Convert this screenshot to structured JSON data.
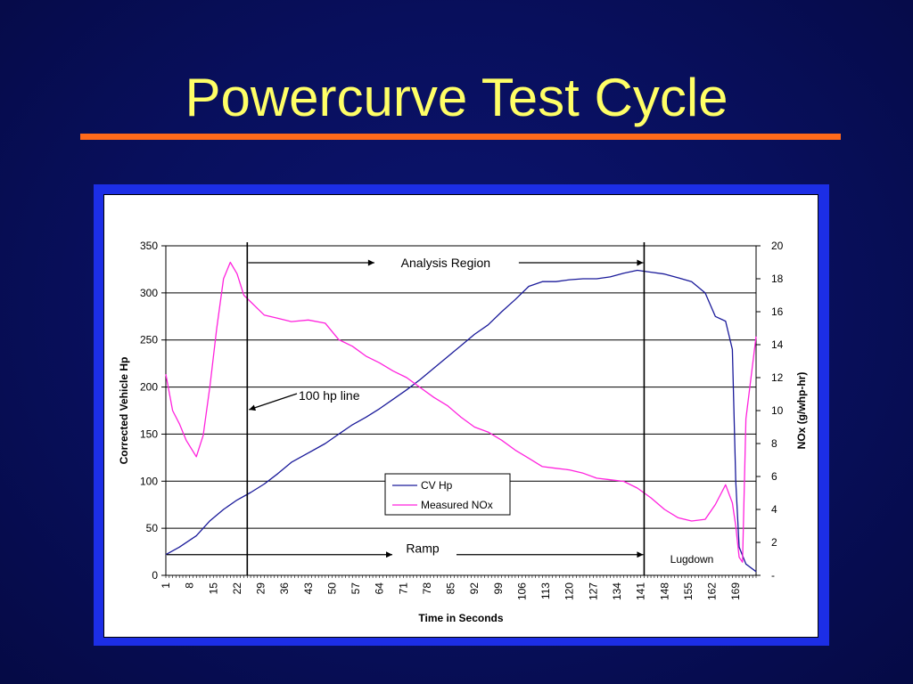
{
  "slide": {
    "title": "Powercurve Test Cycle",
    "title_color": "#ffff66",
    "rule_color": "#ff6a1a",
    "frame_color": "#1c2ee6"
  },
  "chart_data": {
    "type": "line",
    "xlabel": "Time in Seconds",
    "ylabel": "Corrected Vehicle Hp",
    "y2label": "NOx (g/whp-hr)",
    "xlim": [
      1,
      175
    ],
    "ylim": [
      0,
      350
    ],
    "y2lim": [
      0,
      20
    ],
    "x_tick_labels": [
      "1",
      "8",
      "15",
      "22",
      "29",
      "36",
      "43",
      "50",
      "57",
      "64",
      "71",
      "78",
      "85",
      "92",
      "99",
      "106",
      "113",
      "120",
      "127",
      "134",
      "141",
      "148",
      "155",
      "162",
      "169"
    ],
    "y_ticks": [
      0,
      50,
      100,
      150,
      200,
      250,
      300,
      350
    ],
    "y2_ticks": [
      0,
      2,
      4,
      6,
      8,
      10,
      12,
      14,
      16,
      18,
      20
    ],
    "y2_zero_label": "-",
    "grid": "horizontal",
    "legend_position": "lower-center",
    "series": [
      {
        "name": "CV Hp",
        "axis": "left",
        "color": "#1a1a9a",
        "x": [
          1,
          5,
          10,
          14,
          18,
          22,
          26,
          30,
          34,
          38,
          43,
          48,
          52,
          56,
          60,
          64,
          68,
          72,
          76,
          80,
          84,
          88,
          92,
          96,
          100,
          104,
          108,
          112,
          116,
          120,
          124,
          128,
          132,
          136,
          140,
          144,
          148,
          152,
          156,
          160,
          163,
          166,
          168,
          169,
          170,
          172,
          175
        ],
        "y": [
          22,
          30,
          42,
          58,
          70,
          80,
          88,
          97,
          108,
          120,
          130,
          140,
          150,
          160,
          168,
          177,
          187,
          197,
          208,
          220,
          232,
          244,
          256,
          266,
          280,
          293,
          307,
          312,
          312,
          314,
          315,
          315,
          317,
          321,
          324,
          322,
          320,
          316,
          312,
          300,
          275,
          270,
          240,
          100,
          30,
          12,
          4
        ]
      },
      {
        "name": "Measured NOx",
        "axis": "right",
        "color": "#ff22dd",
        "x": [
          1,
          3,
          5,
          7,
          10,
          12,
          14,
          16,
          18,
          20,
          22,
          24,
          26,
          28,
          30,
          34,
          38,
          43,
          48,
          52,
          56,
          60,
          64,
          68,
          72,
          76,
          80,
          84,
          88,
          92,
          96,
          100,
          104,
          108,
          112,
          116,
          120,
          124,
          128,
          132,
          136,
          140,
          144,
          148,
          152,
          156,
          160,
          163,
          166,
          168,
          169,
          170,
          171,
          172,
          175
        ],
        "y": [
          12.2,
          10,
          9.2,
          8.2,
          7.2,
          8.5,
          11.5,
          15,
          18,
          19,
          18.3,
          17,
          16.6,
          16.2,
          15.8,
          15.6,
          15.4,
          15.5,
          15.3,
          14.3,
          13.9,
          13.3,
          12.9,
          12.4,
          12,
          11.4,
          10.8,
          10.3,
          9.6,
          9,
          8.7,
          8.2,
          7.6,
          7.1,
          6.6,
          6.5,
          6.4,
          6.2,
          5.9,
          5.8,
          5.7,
          5.3,
          4.7,
          4,
          3.5,
          3.3,
          3.4,
          4.3,
          5.5,
          4.4,
          3,
          1.1,
          0.8,
          9.5,
          14.5
        ]
      }
    ],
    "annotations": [
      {
        "name": "analysis-region",
        "text": "Analysis Region",
        "type": "bracket",
        "x_from": 25,
        "x_to": 142,
        "y": 332
      },
      {
        "name": "ramp",
        "text": "Ramp",
        "type": "bracket",
        "x_from": 1,
        "x_to": 142,
        "y": 22
      },
      {
        "name": "100-hp-line",
        "text": "100 hp line",
        "type": "callout",
        "x": 25,
        "y": 175
      },
      {
        "name": "lugdown",
        "text": "Lugdown",
        "type": "label"
      }
    ],
    "vertical_markers": [
      25,
      142
    ]
  }
}
